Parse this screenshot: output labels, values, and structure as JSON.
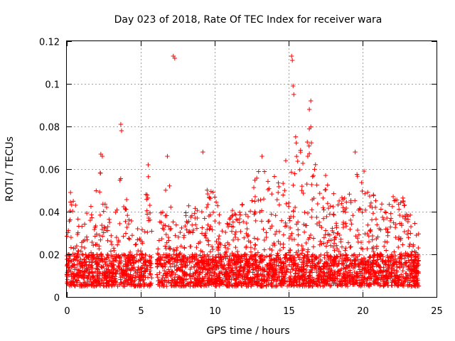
{
  "chart_data": {
    "type": "scatter",
    "title": "Day 023 of 2018, Rate Of TEC Index for receiver wara",
    "xlabel": "GPS time / hours",
    "ylabel": "ROTI / TECUs",
    "xlim": [
      0,
      25
    ],
    "ylim": [
      0,
      0.12
    ],
    "xticks": [
      0,
      5,
      10,
      15,
      20,
      25
    ],
    "yticks": [
      0,
      0.02,
      0.04,
      0.06,
      0.08,
      0.1,
      0.12
    ],
    "xtick_labels": [
      "0",
      "5",
      "10",
      "15",
      "20",
      "25"
    ],
    "ytick_labels": [
      "0",
      "0.02",
      "0.04",
      "0.06",
      "0.08",
      "0.1",
      "0.12"
    ],
    "grid": true,
    "marker": "+",
    "color": "#ff0000",
    "data_gap_hours": [
      5.75,
      6.1
    ],
    "time_range_hours": [
      0,
      23.8
    ],
    "baseline_range": [
      0.005,
      0.02
    ],
    "outliers": [
      {
        "x": 7.2,
        "y": 0.113
      },
      {
        "x": 7.3,
        "y": 0.112
      },
      {
        "x": 15.2,
        "y": 0.113
      },
      {
        "x": 15.25,
        "y": 0.111
      },
      {
        "x": 15.3,
        "y": 0.099
      },
      {
        "x": 15.35,
        "y": 0.095
      },
      {
        "x": 3.65,
        "y": 0.081
      },
      {
        "x": 3.7,
        "y": 0.078
      },
      {
        "x": 16.5,
        "y": 0.092
      },
      {
        "x": 16.4,
        "y": 0.088
      },
      {
        "x": 2.3,
        "y": 0.067
      },
      {
        "x": 2.4,
        "y": 0.066
      },
      {
        "x": 9.2,
        "y": 0.068
      },
      {
        "x": 6.8,
        "y": 0.066
      },
      {
        "x": 13.2,
        "y": 0.066
      },
      {
        "x": 19.5,
        "y": 0.068
      },
      {
        "x": 5.5,
        "y": 0.062
      },
      {
        "x": 0.25,
        "y": 0.049
      },
      {
        "x": 17.5,
        "y": 0.057
      },
      {
        "x": 20.1,
        "y": 0.059
      }
    ],
    "envelope": [
      {
        "x": 0.0,
        "y": 0.03
      },
      {
        "x": 0.3,
        "y": 0.048
      },
      {
        "x": 1.0,
        "y": 0.036
      },
      {
        "x": 1.7,
        "y": 0.044
      },
      {
        "x": 2.3,
        "y": 0.06
      },
      {
        "x": 3.0,
        "y": 0.032
      },
      {
        "x": 3.6,
        "y": 0.06
      },
      {
        "x": 4.3,
        "y": 0.04
      },
      {
        "x": 5.0,
        "y": 0.035
      },
      {
        "x": 5.5,
        "y": 0.06
      },
      {
        "x": 5.7,
        "y": 0.045
      },
      {
        "x": 6.2,
        "y": 0.03
      },
      {
        "x": 6.7,
        "y": 0.06
      },
      {
        "x": 7.5,
        "y": 0.035
      },
      {
        "x": 8.3,
        "y": 0.045
      },
      {
        "x": 9.0,
        "y": 0.04
      },
      {
        "x": 9.7,
        "y": 0.057
      },
      {
        "x": 10.5,
        "y": 0.04
      },
      {
        "x": 11.5,
        "y": 0.045
      },
      {
        "x": 12.3,
        "y": 0.05
      },
      {
        "x": 13.0,
        "y": 0.06
      },
      {
        "x": 13.7,
        "y": 0.06
      },
      {
        "x": 14.3,
        "y": 0.055
      },
      {
        "x": 15.0,
        "y": 0.07
      },
      {
        "x": 15.5,
        "y": 0.08
      },
      {
        "x": 16.0,
        "y": 0.065
      },
      {
        "x": 16.5,
        "y": 0.085
      },
      {
        "x": 17.0,
        "y": 0.05
      },
      {
        "x": 17.7,
        "y": 0.055
      },
      {
        "x": 18.3,
        "y": 0.045
      },
      {
        "x": 19.0,
        "y": 0.05
      },
      {
        "x": 19.5,
        "y": 0.065
      },
      {
        "x": 20.0,
        "y": 0.058
      },
      {
        "x": 20.8,
        "y": 0.05
      },
      {
        "x": 21.5,
        "y": 0.045
      },
      {
        "x": 22.3,
        "y": 0.05
      },
      {
        "x": 23.0,
        "y": 0.045
      },
      {
        "x": 23.8,
        "y": 0.03
      }
    ]
  }
}
